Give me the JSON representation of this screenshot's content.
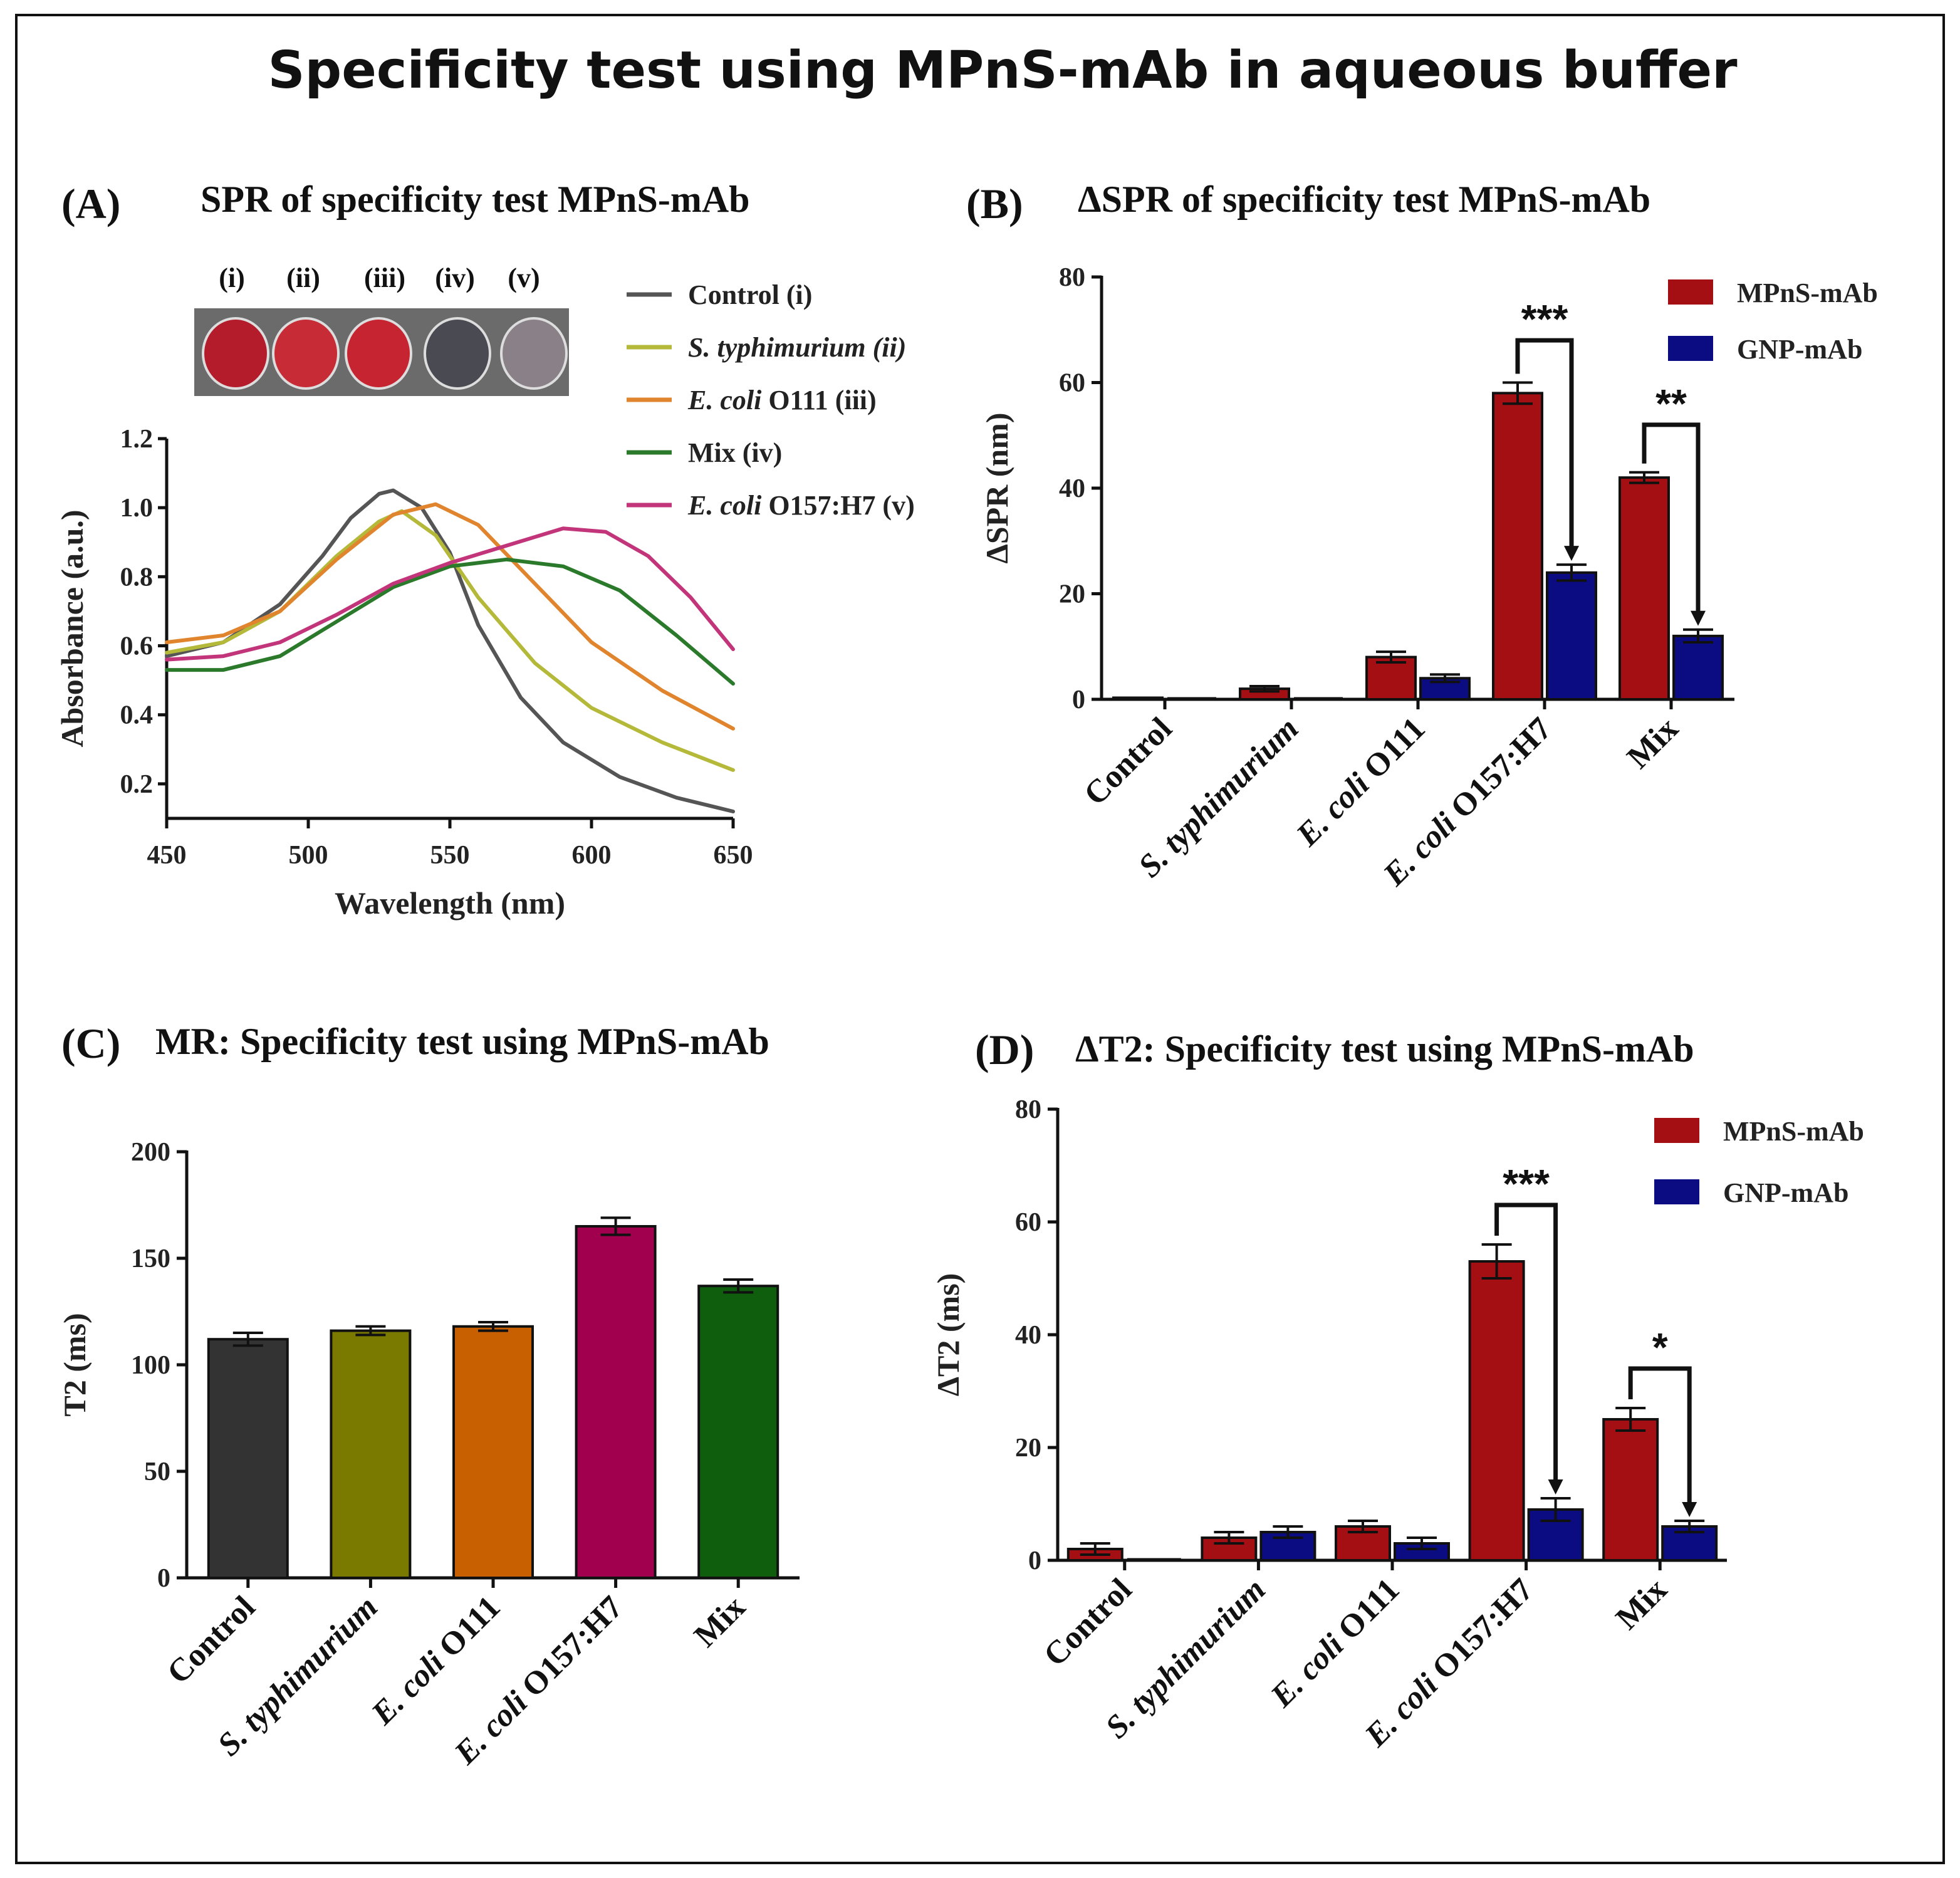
{
  "figure": {
    "title": "Specificity test using MPnS-mAb in aqueous buffer"
  },
  "colors": {
    "mpns": "#a30f12",
    "gnp": "#0b0b82",
    "control": "#555555",
    "typhimurium": "#b5b93a",
    "o111": "#e0852d",
    "mix": "#2b7a2b",
    "o157": "#c2357a",
    "barControl": "#333333",
    "barTyph": "#7a7a00",
    "barO111": "#c85f00",
    "barO157": "#a0004e",
    "barMix": "#0e5e0e"
  },
  "chart_data": [
    {
      "id": "A",
      "letter": "(A)",
      "type": "line",
      "title": "SPR of specificity test MPnS-mAb",
      "xlabel": "Wavelength (nm)",
      "ylabel": "Absorbance (a.u.)",
      "xlim": [
        450,
        650
      ],
      "ylim": [
        0.1,
        1.2
      ],
      "xticks": [
        450,
        500,
        550,
        600,
        650
      ],
      "yticks": [
        0.2,
        0.4,
        0.6,
        0.8,
        1.0,
        1.2
      ],
      "ytickLabels": [
        "0.2",
        "0.4",
        "0.6",
        "0.8",
        "1.0",
        "1.2"
      ],
      "wells": [
        "(i)",
        "(ii)",
        "(iii)",
        "(iv)",
        "(v)"
      ],
      "series": [
        {
          "name": "Control (i)",
          "legend": [
            {
              "t": "Control (i)",
              "i": false
            }
          ],
          "colorKey": "control",
          "x": [
            450,
            470,
            490,
            505,
            515,
            525,
            530,
            540,
            550,
            560,
            575,
            590,
            610,
            630,
            650
          ],
          "y": [
            0.57,
            0.61,
            0.72,
            0.86,
            0.97,
            1.04,
            1.05,
            1.0,
            0.87,
            0.66,
            0.45,
            0.32,
            0.22,
            0.16,
            0.12
          ]
        },
        {
          "name": "S. typhimurium (ii)",
          "legend": [
            {
              "t": "S. typhimurium (ii)",
              "i": true
            }
          ],
          "colorKey": "typhimurium",
          "x": [
            450,
            470,
            490,
            510,
            525,
            533,
            545,
            560,
            580,
            600,
            625,
            650
          ],
          "y": [
            0.58,
            0.61,
            0.7,
            0.86,
            0.96,
            0.99,
            0.92,
            0.74,
            0.55,
            0.42,
            0.32,
            0.24
          ]
        },
        {
          "name": "E. coli O111 (iii)",
          "legend": [
            {
              "t": "E. coli",
              "i": true
            },
            {
              "t": " O111 (iii)",
              "i": false
            }
          ],
          "colorKey": "o111",
          "x": [
            450,
            470,
            490,
            510,
            530,
            545,
            560,
            580,
            600,
            625,
            650
          ],
          "y": [
            0.61,
            0.63,
            0.7,
            0.85,
            0.98,
            1.01,
            0.95,
            0.78,
            0.61,
            0.47,
            0.36
          ]
        },
        {
          "name": "Mix (iv)",
          "legend": [
            {
              "t": "Mix (iv)",
              "i": false
            }
          ],
          "colorKey": "mix",
          "x": [
            450,
            470,
            490,
            510,
            530,
            550,
            570,
            590,
            610,
            630,
            650
          ],
          "y": [
            0.53,
            0.53,
            0.57,
            0.67,
            0.77,
            0.83,
            0.85,
            0.83,
            0.76,
            0.63,
            0.49
          ]
        },
        {
          "name": "E. coli O157:H7 (v)",
          "legend": [
            {
              "t": "E. coli",
              "i": true
            },
            {
              "t": " O157:H7 (v)",
              "i": false
            }
          ],
          "colorKey": "o157",
          "x": [
            450,
            470,
            490,
            510,
            530,
            550,
            570,
            590,
            605,
            620,
            635,
            650
          ],
          "y": [
            0.56,
            0.57,
            0.61,
            0.69,
            0.78,
            0.84,
            0.89,
            0.94,
            0.93,
            0.86,
            0.74,
            0.59
          ]
        }
      ]
    },
    {
      "id": "B",
      "letter": "(B)",
      "type": "bar",
      "title": "ΔSPR of specificity test MPnS-mAb",
      "xlabel": "",
      "ylabel": "ΔSPR (nm)",
      "ylim": [
        0,
        80
      ],
      "yticks": [
        0,
        20,
        40,
        60,
        80
      ],
      "categories": [
        [
          {
            "t": "Control",
            "i": false
          }
        ],
        [
          {
            "t": "S. typhimurium",
            "i": true
          }
        ],
        [
          {
            "t": "E. coli",
            "i": true
          },
          {
            "t": " O111",
            "i": false
          }
        ],
        [
          {
            "t": "E. coli",
            "i": true
          },
          {
            "t": " O157:H7",
            "i": false
          }
        ],
        [
          {
            "t": "Mix",
            "i": false
          }
        ]
      ],
      "series": [
        {
          "name": "MPnS-mAb",
          "colorKey": "mpns",
          "values": [
            0.3,
            2,
            8,
            58,
            42
          ],
          "errors": [
            0,
            0.5,
            1,
            2,
            1
          ]
        },
        {
          "name": "GNP-mAb",
          "colorKey": "gnp",
          "values": [
            0,
            0,
            4,
            24,
            12
          ],
          "errors": [
            0,
            0,
            0.7,
            1.5,
            1.2
          ]
        }
      ],
      "significance": [
        {
          "category": 3,
          "label": "***",
          "y": 68
        },
        {
          "category": 4,
          "label": "**",
          "y": 52
        }
      ]
    },
    {
      "id": "C",
      "letter": "(C)",
      "type": "bar",
      "title": "MR: Specificity test using MPnS-mAb",
      "xlabel": "",
      "ylabel": "T2 (ms)",
      "ylim": [
        0,
        200
      ],
      "yticks": [
        0,
        50,
        100,
        150,
        200
      ],
      "categories": [
        [
          {
            "t": "Control",
            "i": false
          }
        ],
        [
          {
            "t": "S. typhimurium",
            "i": true
          }
        ],
        [
          {
            "t": "E. coli",
            "i": true
          },
          {
            "t": " O111",
            "i": false
          }
        ],
        [
          {
            "t": "E. coli",
            "i": true
          },
          {
            "t": " O157:H7",
            "i": false
          }
        ],
        [
          {
            "t": "Mix",
            "i": false
          }
        ]
      ],
      "series": [
        {
          "name": "T2",
          "colorKeys": [
            "barControl",
            "barTyph",
            "barO111",
            "barO157",
            "barMix"
          ],
          "values": [
            112,
            116,
            118,
            165,
            137
          ],
          "errors": [
            3,
            2,
            2,
            4,
            3
          ]
        }
      ]
    },
    {
      "id": "D",
      "letter": "(D)",
      "type": "bar",
      "title": "ΔT2: Specificity test using MPnS-mAb",
      "xlabel": "",
      "ylabel": "ΔT2 (ms)",
      "ylim": [
        0,
        80
      ],
      "yticks": [
        0,
        20,
        40,
        60,
        80
      ],
      "categories": [
        [
          {
            "t": "Control",
            "i": false
          }
        ],
        [
          {
            "t": "S. typhimurium",
            "i": true
          }
        ],
        [
          {
            "t": "E. coli",
            "i": true
          },
          {
            "t": " O111",
            "i": false
          }
        ],
        [
          {
            "t": "E. coli",
            "i": true
          },
          {
            "t": " O157:H7",
            "i": false
          }
        ],
        [
          {
            "t": "Mix",
            "i": false
          }
        ]
      ],
      "series": [
        {
          "name": "MPnS-mAb",
          "colorKey": "mpns",
          "values": [
            2,
            4,
            6,
            53,
            25
          ],
          "errors": [
            1,
            1,
            1,
            3,
            2
          ]
        },
        {
          "name": "GNP-mAb",
          "colorKey": "gnp",
          "values": [
            0,
            5,
            3,
            9,
            6
          ],
          "errors": [
            0,
            1,
            1,
            2,
            1
          ]
        }
      ],
      "significance": [
        {
          "category": 3,
          "label": "***",
          "y": 63
        },
        {
          "category": 4,
          "label": "*",
          "y": 34
        }
      ]
    }
  ]
}
